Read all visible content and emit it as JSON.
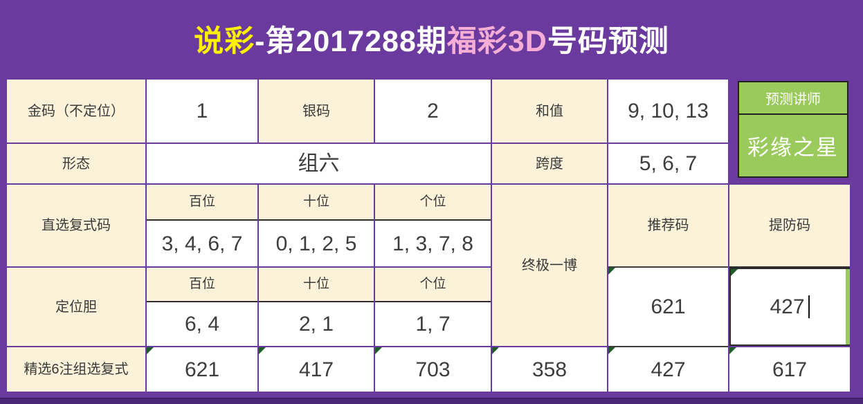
{
  "title": {
    "brand": "说彩",
    "issue": "-第2017288期",
    "game": "福彩3D",
    "suffix": "号码预测"
  },
  "instructor": {
    "title": "预测讲师",
    "name": "彩缘之星"
  },
  "row1": {
    "jinma_label": "金码（不定位）",
    "jinma_value": "1",
    "yinma_label": "银码",
    "yinma_value": "2",
    "hezhi_label": "和值",
    "hezhi_value": "9, 10, 13"
  },
  "row2": {
    "xingtai_label": "形态",
    "xingtai_value": "组六",
    "kuadu_label": "跨度",
    "kuadu_value": "5, 6, 7"
  },
  "zhixuan": {
    "label": "直选复式码",
    "headers": [
      "百位",
      "十位",
      "个位"
    ],
    "values": [
      "3, 4, 6, 7",
      "0, 1, 2, 5",
      "1, 3, 7, 8"
    ]
  },
  "dingwei": {
    "label": "定位胆",
    "headers": [
      "百位",
      "十位",
      "个位"
    ],
    "values": [
      "6, 4",
      "2, 1",
      "1, 7"
    ]
  },
  "zhongji": {
    "label": "终极一博",
    "tuijian_label": "推荐码",
    "tuijian_value": "621",
    "tifang_label": "提防码",
    "tifang_value": "427"
  },
  "bottom": {
    "label": "精选6注组选复式",
    "values": [
      "621",
      "417",
      "703",
      "358",
      "427",
      "617"
    ]
  },
  "colors": {
    "background_purple": "#6B3A9F",
    "cell_cream": "#FCF2D9",
    "instructor_green": "#9BCA5C",
    "title_yellow": "#FFF100",
    "title_pink": "#F6AED5",
    "flag_green": "#1E5C28"
  }
}
